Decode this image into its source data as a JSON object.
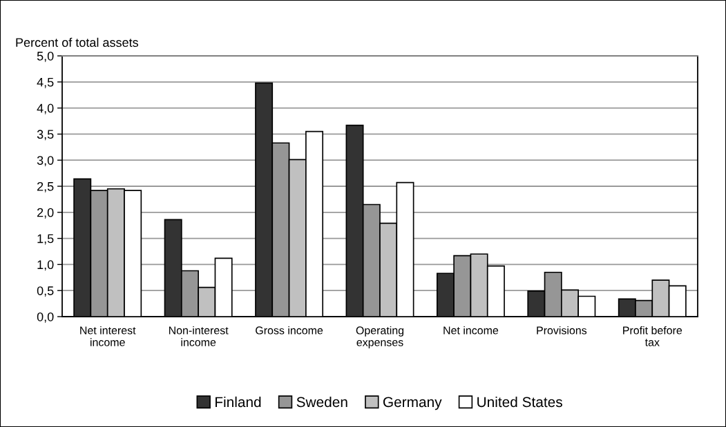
{
  "chart_data": {
    "type": "bar",
    "ylabel": "Percent of total assets",
    "categories": [
      "Net interest\nincome",
      "Non-interest\nincome",
      "Gross income",
      "Operating\nexpenses",
      "Net income",
      "Provisions",
      "Profit before\ntax"
    ],
    "series": [
      {
        "name": "Finland",
        "color": "#333333",
        "values": [
          2.64,
          1.86,
          4.48,
          3.67,
          0.83,
          0.49,
          0.34
        ]
      },
      {
        "name": "Sweden",
        "color": "#969696",
        "values": [
          2.42,
          0.88,
          3.33,
          2.15,
          1.17,
          0.85,
          0.31
        ]
      },
      {
        "name": "Germany",
        "color": "#c0c0c0",
        "values": [
          2.45,
          0.56,
          3.01,
          1.79,
          1.2,
          0.51,
          0.7
        ]
      },
      {
        "name": "United States",
        "color": "#ffffff",
        "values": [
          2.42,
          1.12,
          3.55,
          2.57,
          0.97,
          0.39,
          0.59
        ]
      }
    ],
    "ylim": [
      0,
      5
    ],
    "yticks": [
      {
        "value": 0,
        "label": "0,0"
      },
      {
        "value": 0.5,
        "label": "0,5"
      },
      {
        "value": 1,
        "label": "1,0"
      },
      {
        "value": 1.5,
        "label": "1,5"
      },
      {
        "value": 2,
        "label": "2,0"
      },
      {
        "value": 2.5,
        "label": "2,5"
      },
      {
        "value": 3,
        "label": "3,0"
      },
      {
        "value": 3.5,
        "label": "3,5"
      },
      {
        "value": 4,
        "label": "4,0"
      },
      {
        "value": 4.5,
        "label": "4,5"
      },
      {
        "value": 5,
        "label": "5,0"
      }
    ],
    "grid": "y",
    "legend": "bottom"
  }
}
